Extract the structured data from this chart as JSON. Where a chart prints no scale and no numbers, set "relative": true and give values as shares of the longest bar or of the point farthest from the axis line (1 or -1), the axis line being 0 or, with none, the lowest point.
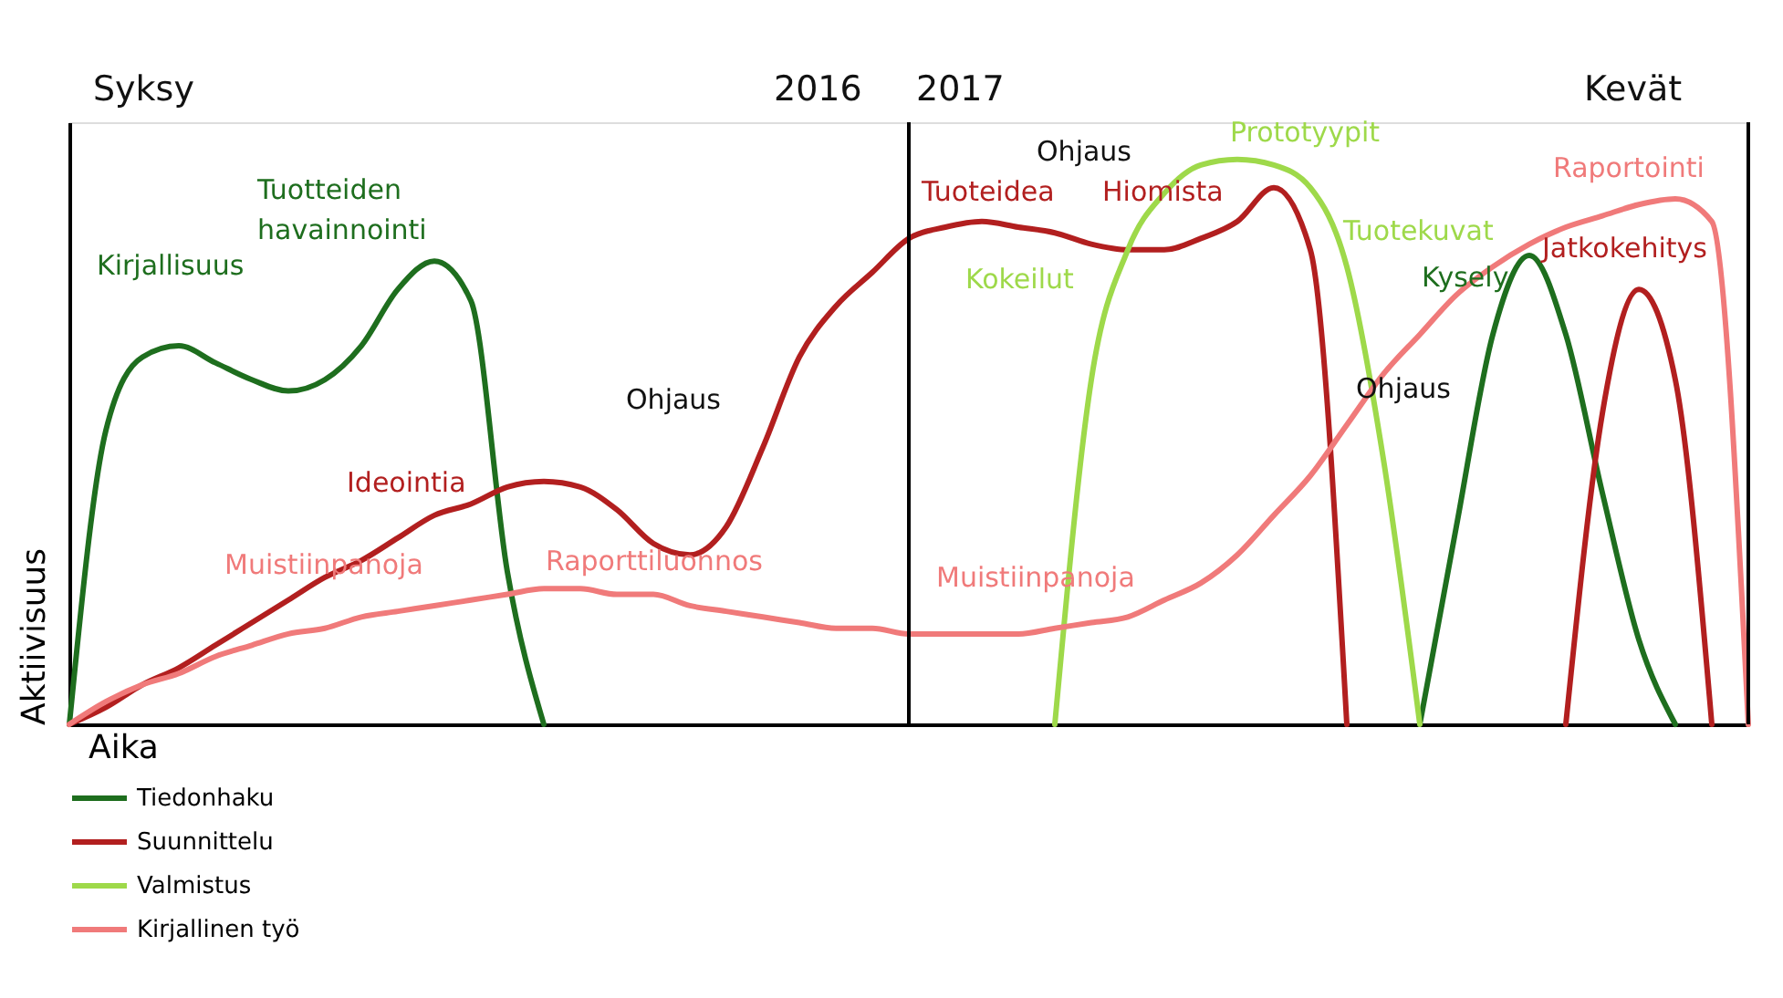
{
  "chart_data": {
    "type": "line",
    "relative": true,
    "xlabel": "Aika",
    "ylabel": "Aktiivisuus",
    "tick_labels": false,
    "grid": false,
    "legend": "bottom",
    "line_style": "solid",
    "marker": "none",
    "categories": [
      null,
      null,
      null,
      null,
      null,
      null,
      null,
      null,
      null,
      null,
      null,
      null,
      null,
      null,
      null,
      null,
      null,
      null,
      null,
      null,
      null,
      null,
      null,
      null,
      null,
      null,
      null,
      null,
      null,
      null,
      null,
      null,
      null,
      null,
      null,
      null,
      null,
      null,
      null,
      null,
      null,
      null,
      null,
      null,
      null,
      null,
      null
    ],
    "series": [
      {
        "name": "Tiedonhaku",
        "color": "#1e6e1e",
        "values": [
          0,
          0.52,
          0.65,
          0.67,
          0.64,
          0.61,
          0.59,
          0.61,
          0.67,
          0.77,
          0.82,
          0.75,
          0.27,
          0,
          null,
          null,
          null,
          null,
          null,
          null,
          null,
          null,
          null,
          null,
          null,
          null,
          null,
          null,
          null,
          null,
          null,
          null,
          null,
          null,
          null,
          null,
          null,
          0,
          0.35,
          0.69,
          0.83,
          0.69,
          0.41,
          0.15,
          0,
          null,
          null
        ]
      },
      {
        "name": "Suunnittelu",
        "color": "#b21f1f",
        "values": [
          0,
          0.03,
          0.07,
          0.1,
          0.14,
          0.18,
          0.22,
          0.26,
          0.29,
          0.33,
          0.37,
          0.39,
          0.42,
          0.43,
          0.42,
          0.38,
          0.32,
          0.3,
          0.35,
          0.49,
          0.65,
          0.74,
          0.8,
          0.86,
          0.88,
          0.89,
          0.88,
          0.87,
          0.85,
          0.84,
          0.84,
          0.86,
          0.89,
          0.95,
          0.84,
          0,
          null,
          null,
          null,
          null,
          null,
          0,
          0.55,
          0.77,
          0.61,
          0,
          null
        ]
      },
      {
        "name": "Valmistus",
        "color": "#9ed94a",
        "values": [
          null,
          null,
          null,
          null,
          null,
          null,
          null,
          null,
          null,
          null,
          null,
          null,
          null,
          null,
          null,
          null,
          null,
          null,
          null,
          null,
          null,
          null,
          null,
          null,
          null,
          null,
          null,
          0,
          0.61,
          0.84,
          0.94,
          0.99,
          1,
          0.99,
          0.95,
          0.81,
          0.47,
          0,
          null,
          null,
          null,
          null,
          null,
          null,
          null,
          null,
          null
        ]
      },
      {
        "name": "Kirjallinen työ",
        "color": "#f07a7a",
        "values": [
          0,
          0.04,
          0.07,
          0.09,
          0.12,
          0.14,
          0.16,
          0.17,
          0.19,
          0.2,
          0.21,
          0.22,
          0.23,
          0.24,
          0.24,
          0.23,
          0.23,
          0.21,
          0.2,
          0.19,
          0.18,
          0.17,
          0.17,
          0.16,
          0.16,
          0.16,
          0.16,
          0.17,
          0.18,
          0.19,
          0.22,
          0.25,
          0.3,
          0.37,
          0.44,
          0.53,
          0.62,
          0.69,
          0.76,
          0.81,
          0.85,
          0.88,
          0.9,
          0.92,
          0.93,
          0.89,
          0
        ]
      }
    ],
    "annotations": [
      "Syksy",
      "2016",
      "2017",
      "Kevät",
      "Kirjallisuus",
      "Tuotteiden havainnointi",
      "Ideointia",
      "Muistiinpanoja",
      "Raporttiluonnos",
      "Ohjaus",
      "Tuoteidea",
      "Ohjaus",
      "Hiomista",
      "Prototyypit",
      "Kokeilut",
      "Tuotekuvat",
      "Muistiinpanoja",
      "Raportointi",
      "Kysely",
      "Jatkokehitys",
      "Ohjaus"
    ]
  }
}
